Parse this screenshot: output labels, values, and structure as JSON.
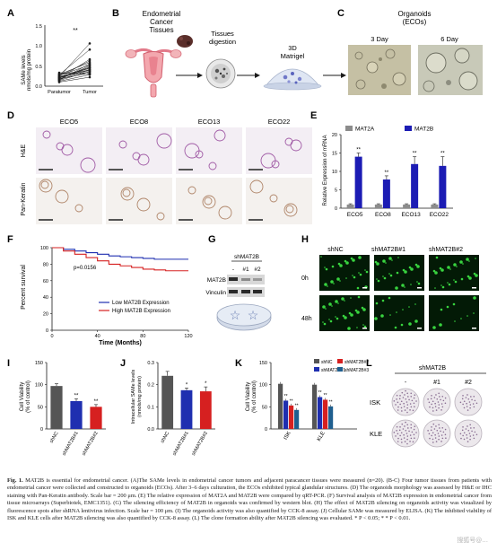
{
  "panels": {
    "A": {
      "label": "A",
      "ylabel_1": "SAMe levels",
      "ylabel_2": "nmols/mg protein",
      "yticks": [
        "0.0",
        "0.5",
        "1.0",
        "1.5"
      ],
      "xcats": [
        "Paratumor",
        "Tumor"
      ],
      "sig": "**"
    },
    "B": {
      "label": "B",
      "title_1": "Endometrial",
      "title_2": "Cancer",
      "title_3": "Tissues",
      "step_1": "Tissues",
      "step_2": "digestion",
      "step_3": "3D",
      "step_4": "Matrigel"
    },
    "C": {
      "label": "C",
      "title": "Organoids",
      "subtitle": "(ECOs)",
      "day_a": "3 Day",
      "day_b": "6 Day"
    },
    "D": {
      "label": "D",
      "cols": [
        "ECO5",
        "ECO8",
        "ECO13",
        "ECO22"
      ],
      "rows": [
        "H&E",
        "Pan-Keratin"
      ]
    },
    "E": {
      "label": "E",
      "ylabel": "Relative Expression of mRNA",
      "legend": [
        "MAT2A",
        "MAT2B"
      ],
      "yticks": [
        "0",
        "5",
        "10",
        "15",
        "20"
      ],
      "sig": "**"
    },
    "F": {
      "label": "F",
      "ylabel": "Percent survival",
      "xlabel": "Time (Months)",
      "pvalue": "p=0.0156",
      "yticks": [
        "0",
        "20",
        "40",
        "60",
        "80",
        "100"
      ],
      "xticks": [
        "0",
        "40",
        "80",
        "120"
      ],
      "legend": [
        "Low MAT2B Expression",
        "High MAT2B Expression"
      ]
    },
    "G": {
      "label": "G",
      "header": "shMAT2B",
      "lanes": [
        "-",
        "#1",
        "#2"
      ],
      "bands": [
        "MAT2B",
        "Vinculin"
      ]
    },
    "H": {
      "label": "H",
      "cols": [
        "shNC",
        "shMAT2B#1",
        "shMAT2B#2"
      ],
      "rows": [
        "0h",
        "48h"
      ]
    },
    "I": {
      "label": "I",
      "ylabel_1": "Cell Viability",
      "ylabel_2": "(% of control)",
      "yticks": [
        "0",
        "50",
        "100",
        "150"
      ],
      "cats": [
        "shNC",
        "shMAT2B#1",
        "shMAT2B#2"
      ],
      "sig": "**"
    },
    "J": {
      "label": "J",
      "ylabel_1": "Intracellular SAMe levels",
      "ylabel_2": "(nmols/mg protein)",
      "yticks": [
        "0.0",
        "0.1",
        "0.2",
        "0.3"
      ],
      "cats": [
        "shNC",
        "shMAT2B#1",
        "shMAT2B#2"
      ],
      "sig": "*"
    },
    "K": {
      "label": "K",
      "ylabel_1": "Cell Viability",
      "ylabel_2": "(% of control)",
      "yticks": [
        "0",
        "50",
        "100",
        "150"
      ],
      "groups": [
        "ISK",
        "KLE"
      ],
      "legend": [
        "shNC",
        "shMAT2B#1",
        "shMAT2B#2",
        "shMAT2B#3"
      ],
      "sig": "**"
    },
    "L": {
      "label": "L",
      "header": "shMAT2B",
      "cols": [
        "-",
        "#1",
        "#2"
      ],
      "rows": [
        "ISK",
        "KLE"
      ]
    }
  },
  "colors": {
    "black": "#1a1a1a",
    "blue": "#1f2fb0",
    "red": "#d62020",
    "teal": "#1f5f8f",
    "grey": "#8c8c8c",
    "darkgrey": "#555555",
    "mat2b": "#1c1cb4"
  },
  "chart_data": [
    {
      "panel": "A",
      "type": "scatter",
      "title": "",
      "ylabel": "SAMe levels nmols/mg protein",
      "categories": [
        "Paratumor",
        "Tumor"
      ],
      "ylim": [
        0,
        1.5
      ],
      "paired_values": [
        [
          0.18,
          0.32
        ],
        [
          0.22,
          0.45
        ],
        [
          0.25,
          0.62
        ],
        [
          0.12,
          0.28
        ],
        [
          0.3,
          0.38
        ],
        [
          0.15,
          0.55
        ],
        [
          0.2,
          0.41
        ],
        [
          0.28,
          0.9
        ],
        [
          0.1,
          0.22
        ],
        [
          0.24,
          0.35
        ],
        [
          0.17,
          0.5
        ],
        [
          0.33,
          0.3
        ],
        [
          0.19,
          0.66
        ],
        [
          0.21,
          0.44
        ],
        [
          0.26,
          0.52
        ],
        [
          0.14,
          0.36
        ],
        [
          0.23,
          1.05
        ],
        [
          0.16,
          0.4
        ],
        [
          0.29,
          0.58
        ],
        [
          0.2,
          0.47
        ]
      ]
    },
    {
      "panel": "E",
      "type": "bar",
      "title": "",
      "ylabel": "Relative Expression of mRNA",
      "categories": [
        "ECO5",
        "ECO8",
        "ECO13",
        "ECO22"
      ],
      "ylim": [
        0,
        20
      ],
      "series": [
        {
          "name": "MAT2A",
          "values": [
            1.0,
            1.0,
            1.0,
            1.0
          ],
          "err": [
            0.2,
            0.2,
            0.2,
            0.2
          ]
        },
        {
          "name": "MAT2B",
          "values": [
            14.0,
            7.8,
            12.0,
            11.5
          ],
          "err": [
            1.0,
            1.0,
            2.0,
            2.5
          ]
        }
      ]
    },
    {
      "panel": "F",
      "type": "line",
      "title": "",
      "xlabel": "Time (Months)",
      "ylabel": "Percent survival",
      "xlim": [
        0,
        120
      ],
      "ylim": [
        0,
        100
      ],
      "series": [
        {
          "name": "Low MAT2B Expression",
          "x": [
            0,
            10,
            20,
            30,
            40,
            50,
            60,
            70,
            80,
            90,
            100,
            110,
            120
          ],
          "y": [
            100,
            98,
            96,
            94,
            92,
            90,
            89,
            88,
            87,
            86,
            86,
            86,
            86
          ]
        },
        {
          "name": "High MAT2B Expression",
          "x": [
            0,
            10,
            20,
            30,
            40,
            50,
            60,
            70,
            80,
            90,
            100,
            110,
            120
          ],
          "y": [
            100,
            96,
            92,
            88,
            84,
            80,
            78,
            76,
            74,
            73,
            72,
            72,
            72
          ]
        }
      ]
    },
    {
      "panel": "I",
      "type": "bar",
      "title": "",
      "ylabel": "Cell Viability (% of control)",
      "categories": [
        "shNC",
        "shMAT2B#1",
        "shMAT2B#2"
      ],
      "ylim": [
        0,
        150
      ],
      "values": [
        97,
        63,
        50
      ],
      "err": [
        5,
        5,
        5
      ]
    },
    {
      "panel": "J",
      "type": "bar",
      "title": "",
      "ylabel": "Intracellular SAMe levels (nmols/mg protein)",
      "categories": [
        "shNC",
        "shMAT2B#1",
        "shMAT2B#2"
      ],
      "ylim": [
        0,
        0.3
      ],
      "values": [
        0.24,
        0.175,
        0.17
      ],
      "err": [
        0.02,
        0.01,
        0.02
      ]
    },
    {
      "panel": "K",
      "type": "bar",
      "title": "",
      "ylabel": "Cell Viability (% of control)",
      "categories": [
        "ISK",
        "KLE"
      ],
      "ylim": [
        0,
        150
      ],
      "series": [
        {
          "name": "shNC",
          "values": [
            102,
            100
          ]
        },
        {
          "name": "shMAT2B#1",
          "values": [
            64,
            72
          ]
        },
        {
          "name": "shMAT2B#2",
          "values": [
            53,
            66
          ]
        },
        {
          "name": "shMAT2B#3",
          "values": [
            43,
            51
          ]
        }
      ]
    }
  ],
  "caption": {
    "label": "Fig. 1.",
    "text": "MAT2B is essential for endometrial cancer. (A)The SAMe levels in endometrial cancer tumors and adjacent paracancer tissues were measured (n=20). (B-C) Four tumor tissues from patients with endometrial cancer were collected and constructed to organoids (ECOs). After 3–6 days culturation, the ECOs exhibited typical glandular structures. (D) The organoids morphology was assessed by H&E or IHC staining with Pan-Keratin antibody. Scale bar = 200 μm. (E) The relative expression of MAT2A and MAT2B were compared by qRT-PCR. (F) Survival analysis of MAT2B expression in endometrial cancer from tissue microarrays (Superbiotek, EMC1351). (G) The silencing efficiency of MAT2B in organoids was confirmed by western blot. (H) The effect of MAT2B silencing on organoids activity was visualized by fluorescence spots after shRNA lentivirus infection. Scale bar = 100 μm. (I) The organoids activity was also quantified by CCK-8 assay. (J) Cellular SAMe was measured by ELISA. (K) The inhibited viability of ISK and KLE cells after MAT2B silencing was also quantified by CCK-8 assay. (L) The clone formation ability after MAT2B silencing was evaluated. * P < 0.05; * * P < 0.01."
  },
  "watermark": "搜狐号@..."
}
